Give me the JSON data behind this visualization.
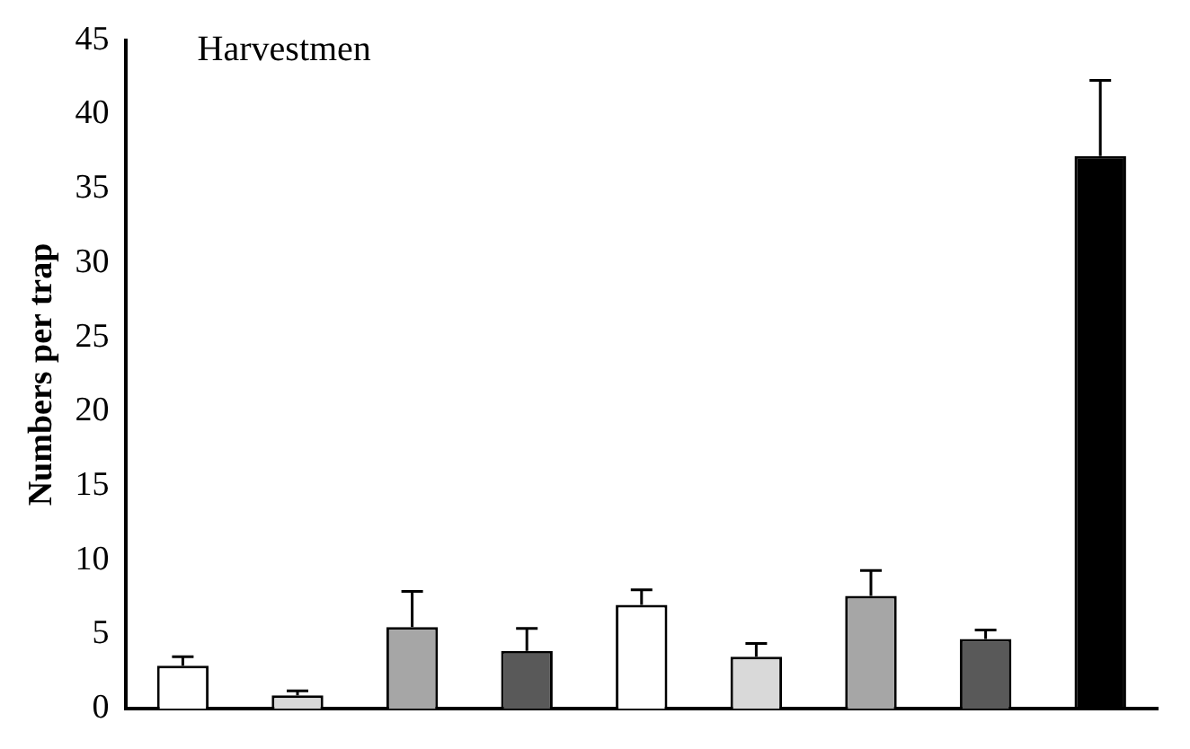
{
  "chart_data": {
    "type": "bar",
    "title": "Harvestmen",
    "ylabel": "Numbers per trap",
    "categories": [
      null,
      null,
      null,
      null,
      null,
      null,
      null,
      null,
      null
    ],
    "values": [
      2.9,
      0.9,
      5.5,
      3.9,
      7.0,
      3.5,
      7.6,
      4.7,
      37.2
    ],
    "errors": [
      0.6,
      0.3,
      2.4,
      1.5,
      1.0,
      0.9,
      1.7,
      0.6,
      5.1
    ],
    "colors": [
      "#ffffff",
      "#d9d9d9",
      "#a6a6a6",
      "#595959",
      "#ffffff",
      "#d9d9d9",
      "#a6a6a6",
      "#595959",
      "#000000"
    ],
    "ylim": [
      0,
      45
    ],
    "yticks": [
      0,
      5,
      10,
      15,
      20,
      25,
      30,
      35,
      40,
      45
    ],
    "grid": false,
    "legend": false
  }
}
